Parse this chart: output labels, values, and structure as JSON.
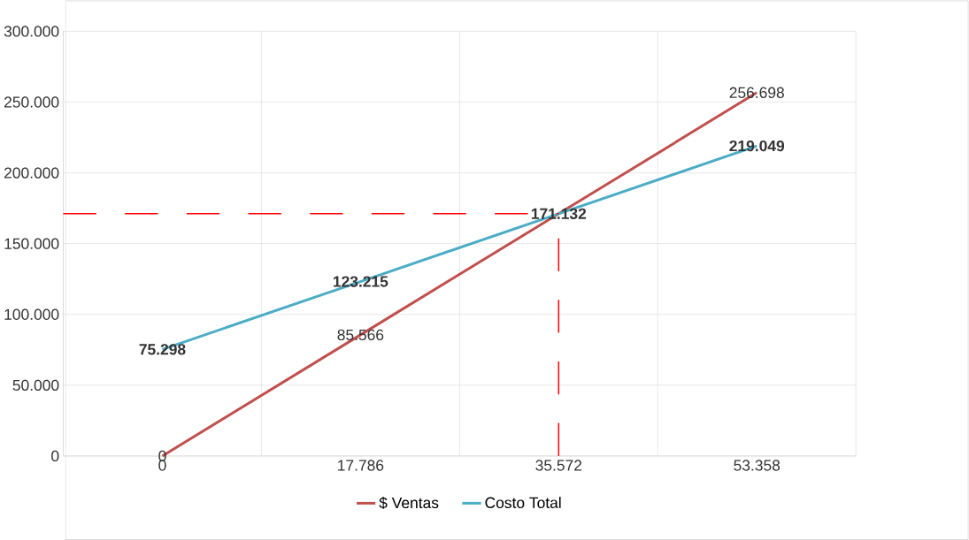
{
  "chart_data": {
    "type": "line",
    "categories": [
      "0",
      "17.786",
      "35.572",
      "53.358"
    ],
    "series": [
      {
        "name": "$ Ventas",
        "color": "#c0504d",
        "values": [
          0,
          85566,
          171132,
          256698
        ],
        "value_labels": [
          "0",
          "85.566",
          null,
          "256.698"
        ]
      },
      {
        "name": "Costo Total",
        "color": "#4bacc6",
        "values": [
          75298,
          123215,
          171132,
          219049
        ],
        "value_labels": [
          "75.298",
          "123.215",
          "171.132",
          "219.049"
        ]
      }
    ],
    "ylim": [
      0,
      300000
    ],
    "yticks": [
      0,
      {
        "value": 50000,
        "label": "50.000"
      },
      {
        "value": 100000,
        "label": "100.000"
      },
      {
        "value": 150000,
        "label": "150.000"
      },
      {
        "value": 200000,
        "label": "200.000"
      },
      {
        "value": 250000,
        "label": "250.000"
      },
      {
        "value": 300000,
        "label": "300.000"
      }
    ],
    "grid": true,
    "legend": "bottom",
    "ref_lines": [
      {
        "axis": "y",
        "value": 171132,
        "color": "#ff0000",
        "line_style": "dashed"
      },
      {
        "axis": "x",
        "value": "35.572",
        "color": "#ff0000",
        "line_style": "dashed"
      }
    ]
  }
}
